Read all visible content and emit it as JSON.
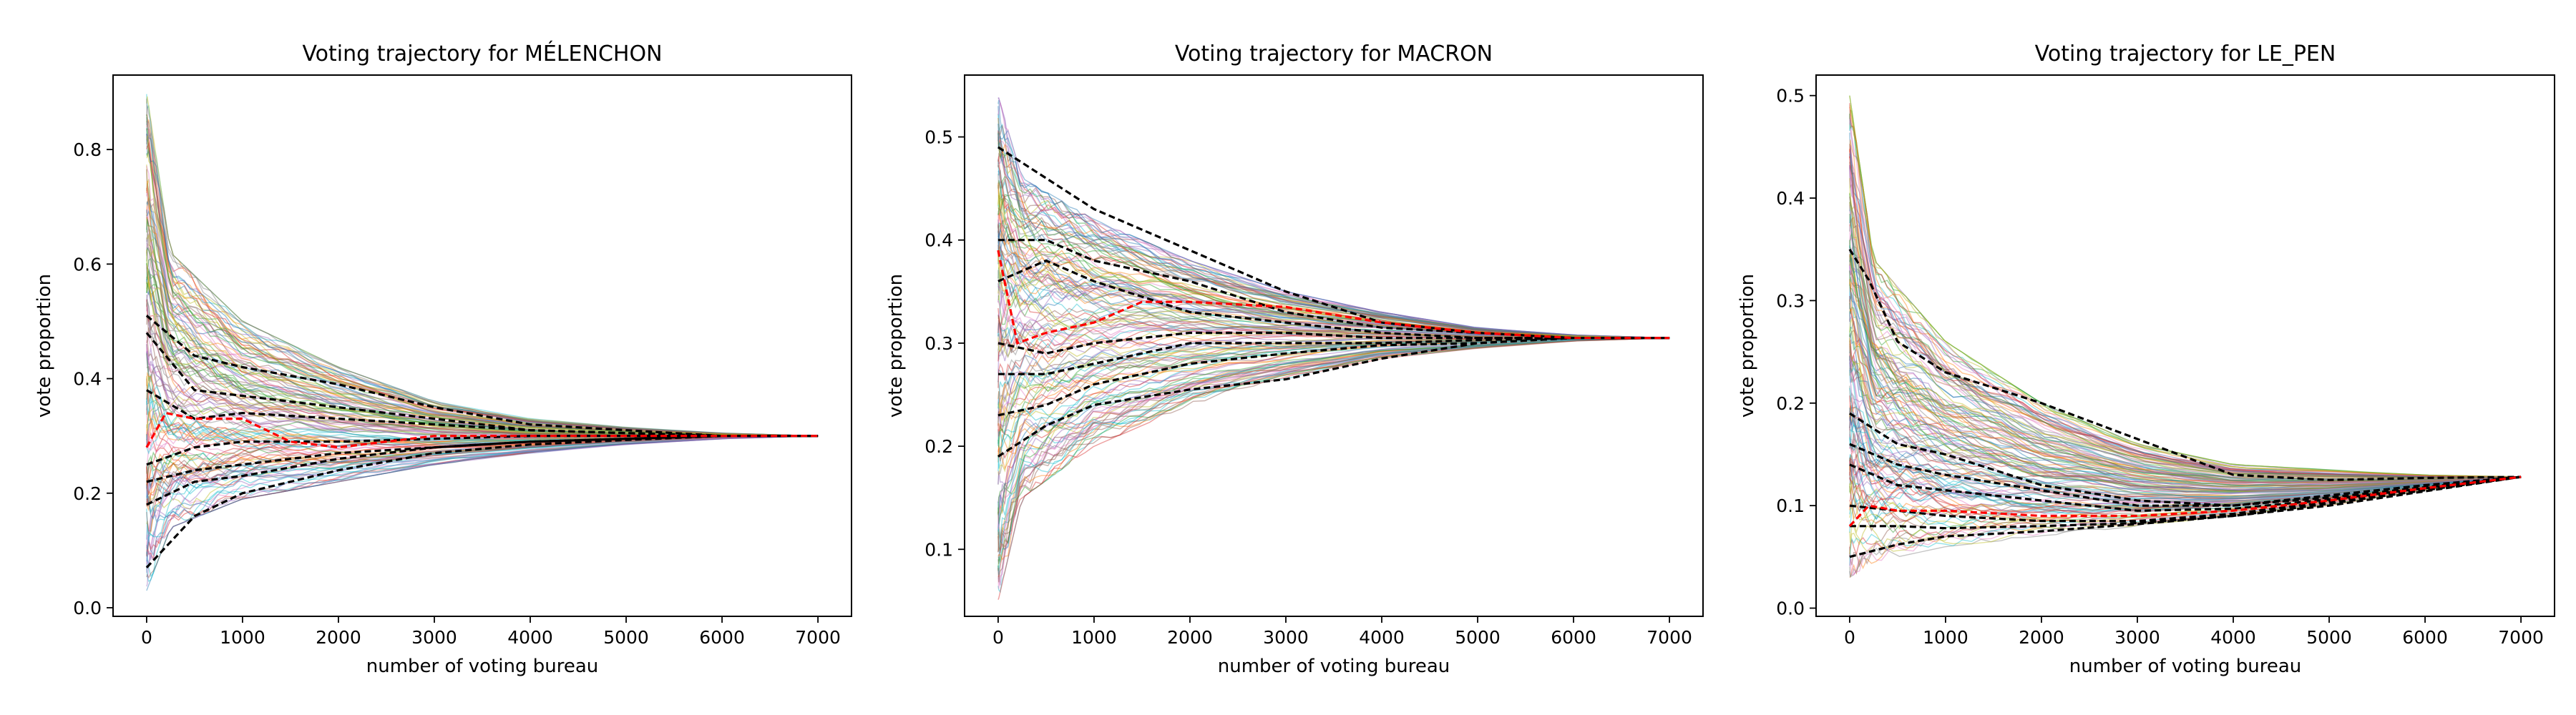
{
  "chart_data": [
    {
      "type": "line",
      "title": "Voting trajectory for MÉLENCHON",
      "xlabel": "number of voting bureau",
      "ylabel": "vote proportion",
      "xlim": [
        -350,
        7350
      ],
      "ylim": [
        -0.015,
        0.93
      ],
      "xticks": [
        0,
        1000,
        2000,
        3000,
        4000,
        5000,
        6000,
        7000
      ],
      "yticks": [
        0.0,
        0.2,
        0.4,
        0.6,
        0.8
      ],
      "ytick_labels": [
        "0.0",
        "0.2",
        "0.4",
        "0.6",
        "0.8"
      ],
      "final_value": 0.3,
      "band": {
        "x": [
          0,
          250,
          1000,
          2000,
          3000,
          4000,
          5000,
          6000,
          7000
        ],
        "low": [
          0.03,
          0.14,
          0.19,
          0.22,
          0.25,
          0.27,
          0.285,
          0.295,
          0.3
        ],
        "high": [
          0.9,
          0.62,
          0.5,
          0.42,
          0.36,
          0.33,
          0.315,
          0.305,
          0.3
        ]
      },
      "random_line_count": 140,
      "highlight_series": [
        {
          "style": "dashed",
          "color": "#000000",
          "x": [
            0,
            500,
            1000,
            2000,
            3000,
            4000,
            5000,
            6000,
            7000
          ],
          "y": [
            0.51,
            0.44,
            0.42,
            0.39,
            0.35,
            0.32,
            0.31,
            0.3,
            0.3
          ]
        },
        {
          "style": "dashed",
          "color": "#000000",
          "x": [
            0,
            500,
            1000,
            2000,
            3000,
            4000,
            5000,
            6000,
            7000
          ],
          "y": [
            0.48,
            0.38,
            0.37,
            0.35,
            0.33,
            0.31,
            0.305,
            0.3,
            0.3
          ]
        },
        {
          "style": "dashed",
          "color": "#000000",
          "x": [
            0,
            500,
            1000,
            2000,
            3000,
            4000,
            5000,
            6000,
            7000
          ],
          "y": [
            0.38,
            0.33,
            0.34,
            0.33,
            0.32,
            0.31,
            0.305,
            0.3,
            0.3
          ]
        },
        {
          "style": "dashed",
          "color": "#000000",
          "x": [
            0,
            500,
            1000,
            2000,
            3000,
            4000,
            5000,
            6000,
            7000
          ],
          "y": [
            0.25,
            0.28,
            0.29,
            0.29,
            0.295,
            0.3,
            0.3,
            0.3,
            0.3
          ]
        },
        {
          "style": "dashed",
          "color": "#000000",
          "x": [
            0,
            500,
            1000,
            2000,
            3000,
            4000,
            5000,
            6000,
            7000
          ],
          "y": [
            0.22,
            0.24,
            0.25,
            0.27,
            0.28,
            0.29,
            0.295,
            0.3,
            0.3
          ]
        },
        {
          "style": "dashed",
          "color": "#000000",
          "x": [
            0,
            500,
            1000,
            2000,
            3000,
            4000,
            5000,
            6000,
            7000
          ],
          "y": [
            0.18,
            0.22,
            0.23,
            0.26,
            0.28,
            0.29,
            0.295,
            0.3,
            0.3
          ]
        },
        {
          "style": "dashed",
          "color": "#000000",
          "x": [
            0,
            500,
            1000,
            2000,
            3000,
            4000,
            5000,
            6000,
            7000
          ],
          "y": [
            0.07,
            0.16,
            0.2,
            0.24,
            0.27,
            0.285,
            0.293,
            0.3,
            0.3
          ]
        },
        {
          "style": "dashed",
          "color": "#ff0000",
          "x": [
            0,
            200,
            500,
            1000,
            1500,
            2000,
            3000,
            4000,
            5000,
            6000,
            7000
          ],
          "y": [
            0.28,
            0.34,
            0.33,
            0.33,
            0.29,
            0.28,
            0.3,
            0.3,
            0.3,
            0.3,
            0.3
          ]
        }
      ]
    },
    {
      "type": "line",
      "title": "Voting trajectory for MACRON",
      "xlabel": "number of voting bureau",
      "ylabel": "vote proportion",
      "xlim": [
        -350,
        7350
      ],
      "ylim": [
        0.035,
        0.56
      ],
      "xticks": [
        0,
        1000,
        2000,
        3000,
        4000,
        5000,
        6000,
        7000
      ],
      "yticks": [
        0.1,
        0.2,
        0.3,
        0.4,
        0.5
      ],
      "ytick_labels": [
        "0.1",
        "0.2",
        "0.3",
        "0.4",
        "0.5"
      ],
      "final_value": 0.305,
      "band": {
        "x": [
          0,
          250,
          1000,
          2000,
          3000,
          4000,
          5000,
          6000,
          7000
        ],
        "low": [
          0.05,
          0.15,
          0.2,
          0.24,
          0.265,
          0.285,
          0.295,
          0.302,
          0.305
        ],
        "high": [
          0.54,
          0.46,
          0.42,
          0.38,
          0.35,
          0.33,
          0.315,
          0.308,
          0.305
        ]
      },
      "random_line_count": 140,
      "highlight_series": [
        {
          "style": "dashed",
          "color": "#000000",
          "x": [
            0,
            500,
            1000,
            2000,
            3000,
            4000,
            5000,
            6000,
            7000
          ],
          "y": [
            0.49,
            0.46,
            0.43,
            0.39,
            0.35,
            0.32,
            0.31,
            0.305,
            0.305
          ]
        },
        {
          "style": "dashed",
          "color": "#000000",
          "x": [
            0,
            500,
            1000,
            2000,
            3000,
            4000,
            5000,
            6000,
            7000
          ],
          "y": [
            0.4,
            0.4,
            0.38,
            0.36,
            0.33,
            0.315,
            0.31,
            0.305,
            0.305
          ]
        },
        {
          "style": "dashed",
          "color": "#000000",
          "x": [
            0,
            500,
            1000,
            2000,
            3000,
            4000,
            5000,
            6000,
            7000
          ],
          "y": [
            0.36,
            0.38,
            0.36,
            0.33,
            0.32,
            0.31,
            0.305,
            0.305,
            0.305
          ]
        },
        {
          "style": "dashed",
          "color": "#000000",
          "x": [
            0,
            500,
            1000,
            2000,
            3000,
            4000,
            5000,
            6000,
            7000
          ],
          "y": [
            0.3,
            0.29,
            0.3,
            0.31,
            0.31,
            0.305,
            0.305,
            0.305,
            0.305
          ]
        },
        {
          "style": "dashed",
          "color": "#000000",
          "x": [
            0,
            500,
            1000,
            2000,
            3000,
            4000,
            5000,
            6000,
            7000
          ],
          "y": [
            0.27,
            0.27,
            0.28,
            0.3,
            0.3,
            0.3,
            0.303,
            0.305,
            0.305
          ]
        },
        {
          "style": "dashed",
          "color": "#000000",
          "x": [
            0,
            500,
            1000,
            2000,
            3000,
            4000,
            5000,
            6000,
            7000
          ],
          "y": [
            0.23,
            0.24,
            0.26,
            0.28,
            0.29,
            0.298,
            0.3,
            0.305,
            0.305
          ]
        },
        {
          "style": "dashed",
          "color": "#000000",
          "x": [
            0,
            500,
            1000,
            2000,
            3000,
            4000,
            5000,
            6000,
            7000
          ],
          "y": [
            0.19,
            0.22,
            0.24,
            0.255,
            0.265,
            0.285,
            0.3,
            0.305,
            0.305
          ]
        },
        {
          "style": "dashed",
          "color": "#ff0000",
          "x": [
            0,
            200,
            500,
            1000,
            1500,
            2000,
            3000,
            4000,
            5000,
            6000,
            7000
          ],
          "y": [
            0.39,
            0.3,
            0.31,
            0.32,
            0.34,
            0.34,
            0.335,
            0.32,
            0.31,
            0.305,
            0.305
          ]
        }
      ]
    },
    {
      "type": "line",
      "title": "Voting trajectory for LE_PEN",
      "xlabel": "number of voting bureau",
      "ylabel": "vote proportion",
      "xlim": [
        -350,
        7350
      ],
      "ylim": [
        -0.008,
        0.52
      ],
      "xticks": [
        0,
        1000,
        2000,
        3000,
        4000,
        5000,
        6000,
        7000
      ],
      "yticks": [
        0.0,
        0.1,
        0.2,
        0.3,
        0.4,
        0.5
      ],
      "ytick_labels": [
        "0.0",
        "0.1",
        "0.2",
        "0.3",
        "0.4",
        "0.5"
      ],
      "final_value": 0.128,
      "band": {
        "x": [
          0,
          250,
          1000,
          2000,
          3000,
          4000,
          5000,
          6000,
          7000
        ],
        "low": [
          0.03,
          0.045,
          0.06,
          0.07,
          0.08,
          0.09,
          0.1,
          0.115,
          0.128
        ],
        "high": [
          0.5,
          0.34,
          0.26,
          0.2,
          0.16,
          0.14,
          0.135,
          0.13,
          0.128
        ]
      },
      "random_line_count": 140,
      "highlight_series": [
        {
          "style": "dashed",
          "color": "#000000",
          "x": [
            0,
            200,
            500,
            1000,
            2000,
            3000,
            4000,
            5000,
            6000,
            7000
          ],
          "y": [
            0.35,
            0.32,
            0.26,
            0.23,
            0.2,
            0.165,
            0.13,
            0.125,
            0.127,
            0.128
          ]
        },
        {
          "style": "dashed",
          "color": "#000000",
          "x": [
            0,
            500,
            1000,
            2000,
            3000,
            4000,
            5000,
            6000,
            7000
          ],
          "y": [
            0.19,
            0.16,
            0.15,
            0.12,
            0.105,
            0.1,
            0.11,
            0.12,
            0.128
          ]
        },
        {
          "style": "dashed",
          "color": "#000000",
          "x": [
            0,
            500,
            1000,
            2000,
            3000,
            4000,
            5000,
            6000,
            7000
          ],
          "y": [
            0.16,
            0.14,
            0.13,
            0.115,
            0.1,
            0.1,
            0.108,
            0.118,
            0.128
          ]
        },
        {
          "style": "dashed",
          "color": "#000000",
          "x": [
            0,
            500,
            1000,
            2000,
            3000,
            4000,
            5000,
            6000,
            7000
          ],
          "y": [
            0.14,
            0.12,
            0.115,
            0.105,
            0.095,
            0.097,
            0.106,
            0.117,
            0.128
          ]
        },
        {
          "style": "dashed",
          "color": "#000000",
          "x": [
            0,
            500,
            1000,
            2000,
            3000,
            4000,
            5000,
            6000,
            7000
          ],
          "y": [
            0.1,
            0.095,
            0.09,
            0.085,
            0.085,
            0.092,
            0.104,
            0.116,
            0.128
          ]
        },
        {
          "style": "dashed",
          "color": "#000000",
          "x": [
            0,
            500,
            1000,
            2000,
            3000,
            4000,
            5000,
            6000,
            7000
          ],
          "y": [
            0.08,
            0.08,
            0.078,
            0.08,
            0.083,
            0.09,
            0.102,
            0.115,
            0.128
          ]
        },
        {
          "style": "dashed",
          "color": "#000000",
          "x": [
            0,
            500,
            1000,
            2000,
            3000,
            4000,
            5000,
            6000,
            7000
          ],
          "y": [
            0.05,
            0.062,
            0.07,
            0.075,
            0.082,
            0.09,
            0.1,
            0.114,
            0.128
          ]
        },
        {
          "style": "dashed",
          "color": "#ff0000",
          "x": [
            0,
            200,
            500,
            1000,
            2000,
            3000,
            4000,
            5000,
            6000,
            7000
          ],
          "y": [
            0.08,
            0.1,
            0.095,
            0.095,
            0.09,
            0.09,
            0.095,
            0.105,
            0.117,
            0.128
          ]
        }
      ]
    }
  ]
}
